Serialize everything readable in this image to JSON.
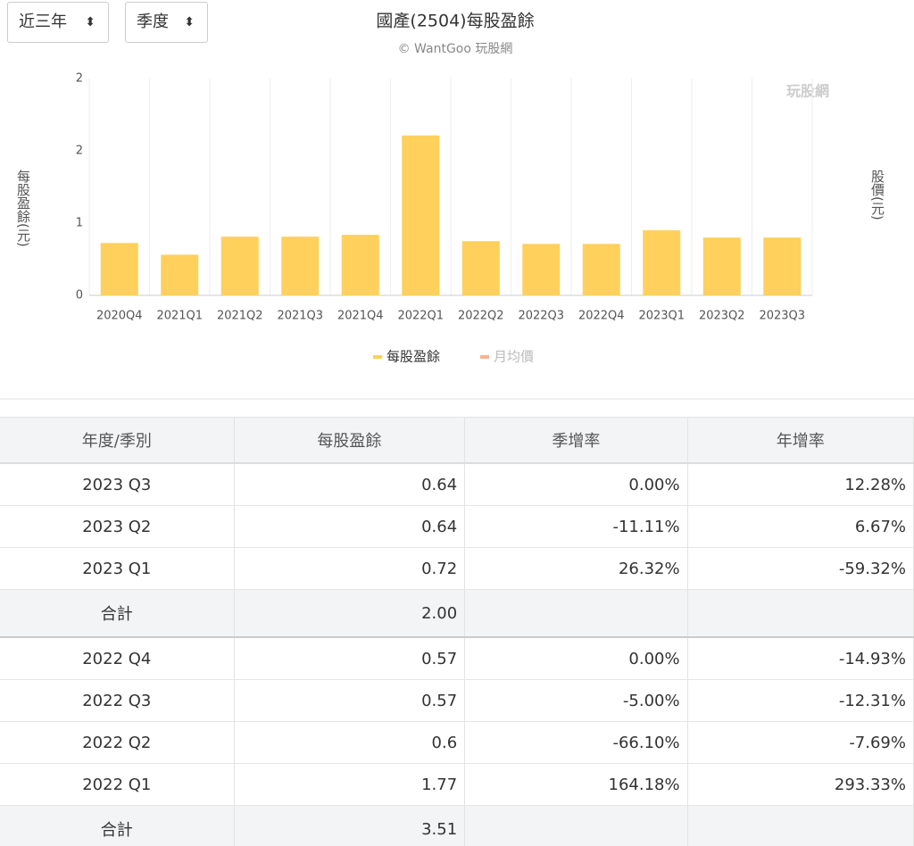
{
  "controls": {
    "range": "近三年",
    "period": "季度"
  },
  "chart_data": {
    "type": "bar",
    "title": "國產(2504)每股盈餘",
    "subtitle": "© WantGoo 玩股網",
    "watermark": "玩股網",
    "y_label": "每股盈餘(元)",
    "y2_label": "股價(元)",
    "categories": [
      "2020Q4",
      "2021Q1",
      "2021Q2",
      "2021Q3",
      "2021Q4",
      "2022Q1",
      "2022Q2",
      "2022Q3",
      "2022Q4",
      "2023Q1",
      "2023Q2",
      "2023Q3"
    ],
    "series": [
      {
        "name": "每股盈餘",
        "color": "#ffd05b",
        "values": [
          0.58,
          0.45,
          0.65,
          0.65,
          0.67,
          1.77,
          0.6,
          0.57,
          0.57,
          0.72,
          0.64,
          0.64
        ]
      },
      {
        "name": "月均價",
        "color": "#f0804a",
        "axis": "y2",
        "hidden": true,
        "values": [
          null,
          null,
          null,
          null,
          null,
          null,
          null,
          null,
          null,
          null,
          null,
          null
        ]
      }
    ],
    "ylim": [
      0,
      2.4
    ],
    "yticks": [
      0,
      {
        "value": 0.8,
        "label": "1"
      },
      {
        "value": 1.6,
        "label": "2"
      },
      {
        "value": 2.4,
        "label": "2"
      }
    ],
    "grid": true
  },
  "table": {
    "header": [
      "年度/季別",
      "每股盈餘",
      "季增率",
      "年增率"
    ],
    "rows": [
      [
        "2023 Q3",
        "0.64",
        "0.00%",
        "12.28%"
      ],
      [
        "2023 Q2",
        "0.64",
        "-11.11%",
        "6.67%"
      ],
      [
        "2023 Q1",
        "0.72",
        "26.32%",
        "-59.32%"
      ],
      [
        "合計",
        "2.00"
      ],
      [
        "2022 Q4",
        "0.57",
        "0.00%",
        "-14.93%"
      ],
      [
        "2022 Q3",
        "0.57",
        "-5.00%",
        "-12.31%"
      ],
      [
        "2022 Q2",
        "0.6",
        "-66.10%",
        "-7.69%"
      ],
      [
        "2022 Q1",
        "1.77",
        "164.18%",
        "293.33%"
      ],
      [
        "合計",
        "3.51"
      ]
    ]
  }
}
